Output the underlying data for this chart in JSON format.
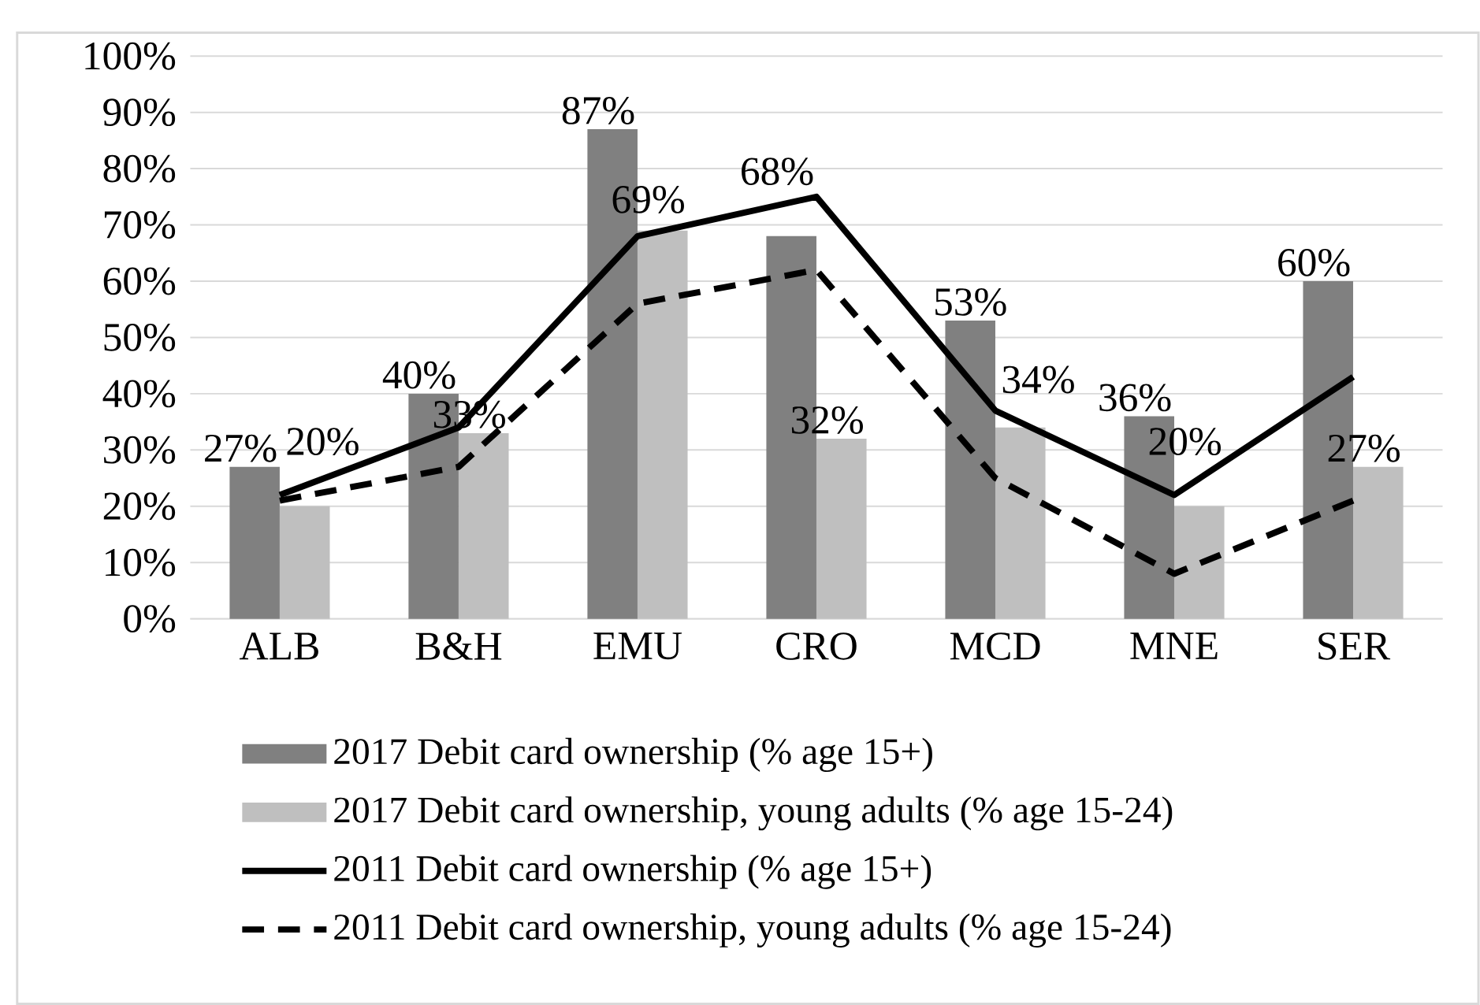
{
  "chart_data": {
    "type": "bar",
    "categories": [
      "ALB",
      "B&H",
      "EMU",
      "CRO",
      "MCD",
      "MNE",
      "SER"
    ],
    "series": [
      {
        "name": "2017 Debit card ownership (% age 15+)",
        "type": "bar",
        "color": "#808080",
        "values": [
          27,
          40,
          87,
          68,
          53,
          36,
          60
        ],
        "value_labels": [
          "27%",
          "40%",
          "87%",
          "68%",
          "53%",
          "36%",
          "60%"
        ]
      },
      {
        "name": "2017 Debit card ownership, young adults (% age 15-24)",
        "type": "bar",
        "color": "#bfbfbf",
        "values": [
          20,
          33,
          69,
          32,
          34,
          20,
          27
        ],
        "value_labels": [
          "20%",
          "33%",
          "69%",
          "32%",
          "34%",
          "20%",
          "27%"
        ]
      },
      {
        "name": "2011 Debit card ownership (% age 15+)",
        "type": "line",
        "color": "#000000",
        "line_style": "solid",
        "values": [
          22,
          34,
          68,
          75,
          37,
          22,
          43
        ]
      },
      {
        "name": "2011 Debit card ownership, young adults (% age 15-24)",
        "type": "line",
        "color": "#000000",
        "line_style": "dashed",
        "values": [
          21,
          27,
          56,
          62,
          25,
          8,
          21
        ]
      }
    ],
    "ylim": [
      0,
      100
    ],
    "yticks": [
      {
        "value": 0,
        "label": "0%"
      },
      {
        "value": 10,
        "label": "10%"
      },
      {
        "value": 20,
        "label": "20%"
      },
      {
        "value": 30,
        "label": "30%"
      },
      {
        "value": 40,
        "label": "40%"
      },
      {
        "value": 50,
        "label": "50%"
      },
      {
        "value": 60,
        "label": "60%"
      },
      {
        "value": 70,
        "label": "70%"
      },
      {
        "value": 80,
        "label": "80%"
      },
      {
        "value": 90,
        "label": "90%"
      },
      {
        "value": 100,
        "label": "100%"
      }
    ],
    "grid": "y",
    "legend": "bottom",
    "marker": "none"
  }
}
